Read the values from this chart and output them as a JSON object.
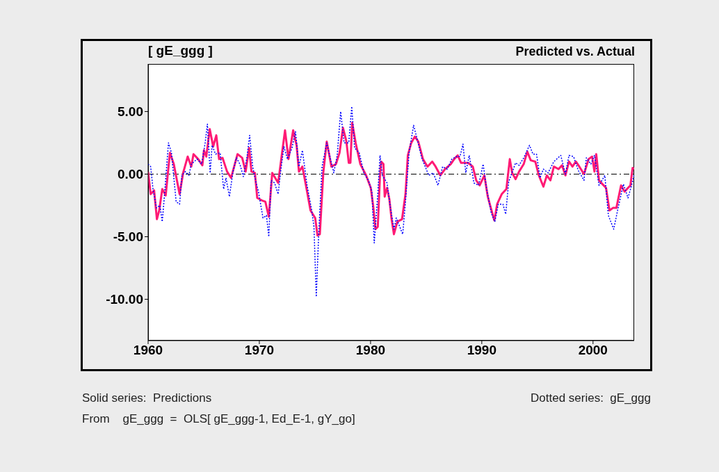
{
  "chart_data": {
    "type": "line",
    "title": "Predicted vs. Actual",
    "ylabel": "[ gE_ggg ]",
    "annotations": [
      "Solid series:  Predictions",
      "Dotted series:  gE_ggg",
      "From    gE_ggg  =  OLS[ gE_ggg-1, Ed_E-1, gY_go]"
    ],
    "xlim": [
      1960,
      2003.7
    ],
    "xticks": [
      1960,
      1970,
      1980,
      1990,
      2000
    ],
    "ylim": [
      -13.3,
      8.8
    ],
    "yticks": [
      {
        "value": 5,
        "label": "5.00"
      },
      {
        "value": 0,
        "label": "0.00"
      },
      {
        "value": -5,
        "label": "-5.00"
      },
      {
        "value": -10,
        "label": "-10.00"
      }
    ],
    "marker": "none",
    "ref_lines": [
      {
        "axis": "y",
        "value": 0,
        "color": "#000000",
        "line_style": "dashed"
      }
    ],
    "series": [
      {
        "color": "#ff1a75",
        "line_style": "solid",
        "x": [
          1960.0,
          1960.23,
          1960.54,
          1960.79,
          1961.0,
          1961.27,
          1961.58,
          1961.96,
          1962.31,
          1962.83,
          1963.15,
          1963.56,
          1963.88,
          1964.08,
          1964.5,
          1964.88,
          1965.02,
          1965.23,
          1965.54,
          1965.85,
          1966.13,
          1966.38,
          1966.69,
          1967.1,
          1967.46,
          1968.04,
          1968.46,
          1968.77,
          1969.08,
          1969.29,
          1969.6,
          1969.81,
          1970.23,
          1970.54,
          1970.85,
          1971.16,
          1971.69,
          1972.0,
          1972.31,
          1972.62,
          1973.04,
          1973.35,
          1973.56,
          1973.87,
          1974.19,
          1974.6,
          1975.02,
          1975.23,
          1975.44,
          1975.75,
          1976.06,
          1976.48,
          1976.89,
          1977.21,
          1977.52,
          1977.83,
          1978.04,
          1978.19,
          1978.35,
          1978.66,
          1979.08,
          1979.6,
          1980.02,
          1980.23,
          1980.44,
          1980.65,
          1980.85,
          1980.96,
          1981.16,
          1981.27,
          1981.48,
          1981.69,
          1981.89,
          1982.1,
          1982.41,
          1982.83,
          1983.14,
          1983.35,
          1983.66,
          1983.98,
          1984.29,
          1984.71,
          1985.12,
          1985.54,
          1985.85,
          1986.27,
          1986.69,
          1987.21,
          1987.52,
          1987.83,
          1988.14,
          1988.77,
          1989.19,
          1989.5,
          1989.81,
          1990.23,
          1990.54,
          1990.75,
          1991.13,
          1991.38,
          1991.79,
          1992.21,
          1992.52,
          1992.73,
          1993.04,
          1993.35,
          1993.77,
          1994.09,
          1994.4,
          1994.81,
          1995.13,
          1995.54,
          1995.85,
          1996.17,
          1996.48,
          1996.9,
          1997.21,
          1997.52,
          1997.84,
          1998.15,
          1998.46,
          1998.77,
          1999.19,
          1999.6,
          1999.92,
          2000.13,
          2000.29,
          2000.54,
          2000.85,
          2001.17,
          2001.48,
          2001.79,
          2002.1,
          2002.52,
          2002.84,
          2003.15,
          2003.36,
          2003.56,
          2003.7
        ],
        "values": [
          0.2,
          -1.6,
          -1.3,
          -3.6,
          -2.9,
          -1.2,
          -1.7,
          1.7,
          0.8,
          -1.6,
          0.1,
          1.4,
          0.6,
          1.6,
          1.2,
          0.7,
          1.9,
          1.4,
          3.6,
          2.2,
          3.1,
          1.2,
          1.3,
          0.2,
          -0.3,
          1.6,
          1.3,
          0.2,
          2.1,
          0.2,
          0.1,
          -1.9,
          -2.1,
          -2.2,
          -3.4,
          0.1,
          -0.7,
          1.4,
          3.5,
          1.2,
          3.5,
          2.3,
          0.2,
          0.6,
          -0.9,
          -2.9,
          -3.5,
          -4.9,
          -4.8,
          0.1,
          2.6,
          0.6,
          0.8,
          1.7,
          3.7,
          2.6,
          0.9,
          0.9,
          4.1,
          2.5,
          0.8,
          -0.1,
          -1.1,
          -2.5,
          -4.4,
          -4.2,
          -0.1,
          1.0,
          0.8,
          -1.8,
          -1.1,
          -2.0,
          -3.6,
          -4.8,
          -3.8,
          -3.6,
          -1.6,
          1.5,
          2.5,
          3.0,
          2.6,
          1.2,
          0.6,
          1.0,
          0.6,
          -0.1,
          0.4,
          0.8,
          1.2,
          1.5,
          0.9,
          0.9,
          0.6,
          -0.5,
          -0.9,
          -0.1,
          -1.8,
          -2.5,
          -3.7,
          -2.4,
          -1.6,
          -1.2,
          1.2,
          0.1,
          -0.4,
          0.2,
          0.8,
          1.8,
          1.1,
          1.0,
          -0.1,
          -1.0,
          -0.1,
          -0.5,
          0.6,
          0.4,
          0.7,
          -0.1,
          1.0,
          0.6,
          1.0,
          0.6,
          0.0,
          1.2,
          1.4,
          0.2,
          1.6,
          -0.5,
          -0.8,
          -1.1,
          -2.9,
          -2.7,
          -2.7,
          -0.9,
          -1.4,
          -1.1,
          -0.9,
          0.5,
          0.4
        ]
      },
      {
        "color": "#0000ff",
        "line_style": "dotted",
        "x": [
          1960.0,
          1960.23,
          1960.44,
          1960.75,
          1961.06,
          1961.27,
          1961.48,
          1961.83,
          1962.1,
          1962.52,
          1962.83,
          1963.04,
          1963.35,
          1963.67,
          1963.88,
          1964.4,
          1964.81,
          1965.13,
          1965.33,
          1965.58,
          1965.75,
          1966.06,
          1966.48,
          1966.79,
          1967.0,
          1967.31,
          1967.63,
          1967.94,
          1968.25,
          1968.56,
          1968.88,
          1969.13,
          1969.4,
          1969.71,
          1969.92,
          1970.33,
          1970.64,
          1970.85,
          1971.06,
          1971.37,
          1971.69,
          1971.9,
          1972.21,
          1972.52,
          1972.94,
          1973.25,
          1973.56,
          1973.87,
          1974.29,
          1974.71,
          1974.91,
          1975.12,
          1975.33,
          1975.64,
          1976.06,
          1976.27,
          1976.69,
          1977.0,
          1977.31,
          1977.62,
          1978.04,
          1978.31,
          1978.56,
          1978.98,
          1979.4,
          1979.81,
          1980.12,
          1980.33,
          1980.65,
          1980.85,
          1981.06,
          1981.48,
          1981.79,
          1982.1,
          1982.31,
          1982.62,
          1982.89,
          1983.14,
          1983.46,
          1983.87,
          1984.19,
          1984.6,
          1985.23,
          1985.64,
          1986.06,
          1986.48,
          1986.89,
          1987.31,
          1987.73,
          1988.04,
          1988.31,
          1988.56,
          1988.87,
          1989.29,
          1989.71,
          1990.12,
          1990.44,
          1990.85,
          1991.17,
          1991.48,
          1991.9,
          1992.15,
          1992.42,
          1993.04,
          1993.35,
          1993.77,
          1994.29,
          1994.6,
          1994.92,
          1995.23,
          1995.54,
          1995.96,
          1996.48,
          1997.1,
          1997.52,
          1997.84,
          1998.25,
          1998.67,
          1999.19,
          1999.4,
          1999.81,
          2000.13,
          2000.54,
          2001.06,
          2001.38,
          2001.86,
          2002.21,
          2002.73,
          2003.15,
          2003.46,
          2003.7
        ],
        "values": [
          0.8,
          0.6,
          -1.2,
          -2.7,
          -2.5,
          -3.8,
          -1.6,
          2.5,
          1.7,
          -2.2,
          -2.4,
          -0.1,
          0.2,
          -0.1,
          0.8,
          1.2,
          0.8,
          2.5,
          4.0,
          0.1,
          2.3,
          1.6,
          1.7,
          -1.2,
          -0.3,
          -1.8,
          0.2,
          1.3,
          0.8,
          -0.2,
          1.3,
          3.1,
          0.6,
          -0.7,
          -1.4,
          -3.5,
          -3.3,
          -5.0,
          -0.5,
          -0.7,
          -1.6,
          0.1,
          2.2,
          1.2,
          2.1,
          3.4,
          0.6,
          1.9,
          -0.9,
          -2.9,
          -4.2,
          -9.8,
          -4.9,
          0.6,
          2.5,
          1.7,
          0.1,
          1.5,
          5.0,
          2.5,
          2.5,
          5.4,
          2.1,
          1.7,
          0.1,
          -0.5,
          -1.4,
          -5.5,
          -1.6,
          1.5,
          -0.1,
          -0.7,
          -2.7,
          -4.4,
          -3.5,
          -4.2,
          -4.8,
          -2.2,
          1.7,
          3.9,
          2.8,
          1.3,
          -0.1,
          0.1,
          -0.9,
          0.6,
          0.4,
          1.2,
          1.4,
          1.4,
          2.4,
          0.1,
          1.5,
          -0.7,
          -0.9,
          0.8,
          -1.2,
          -3.1,
          -3.8,
          -2.4,
          -2.4,
          -3.2,
          -0.6,
          0.9,
          0.7,
          1.3,
          2.3,
          1.6,
          1.6,
          -0.3,
          0.4,
          0.1,
          1.0,
          1.5,
          0.0,
          1.5,
          1.4,
          0.3,
          -0.5,
          1.3,
          0.8,
          1.5,
          -0.9,
          -0.1,
          -3.3,
          -4.4,
          -2.9,
          -0.8,
          -1.9,
          -0.9,
          -0.1
        ]
      }
    ]
  }
}
